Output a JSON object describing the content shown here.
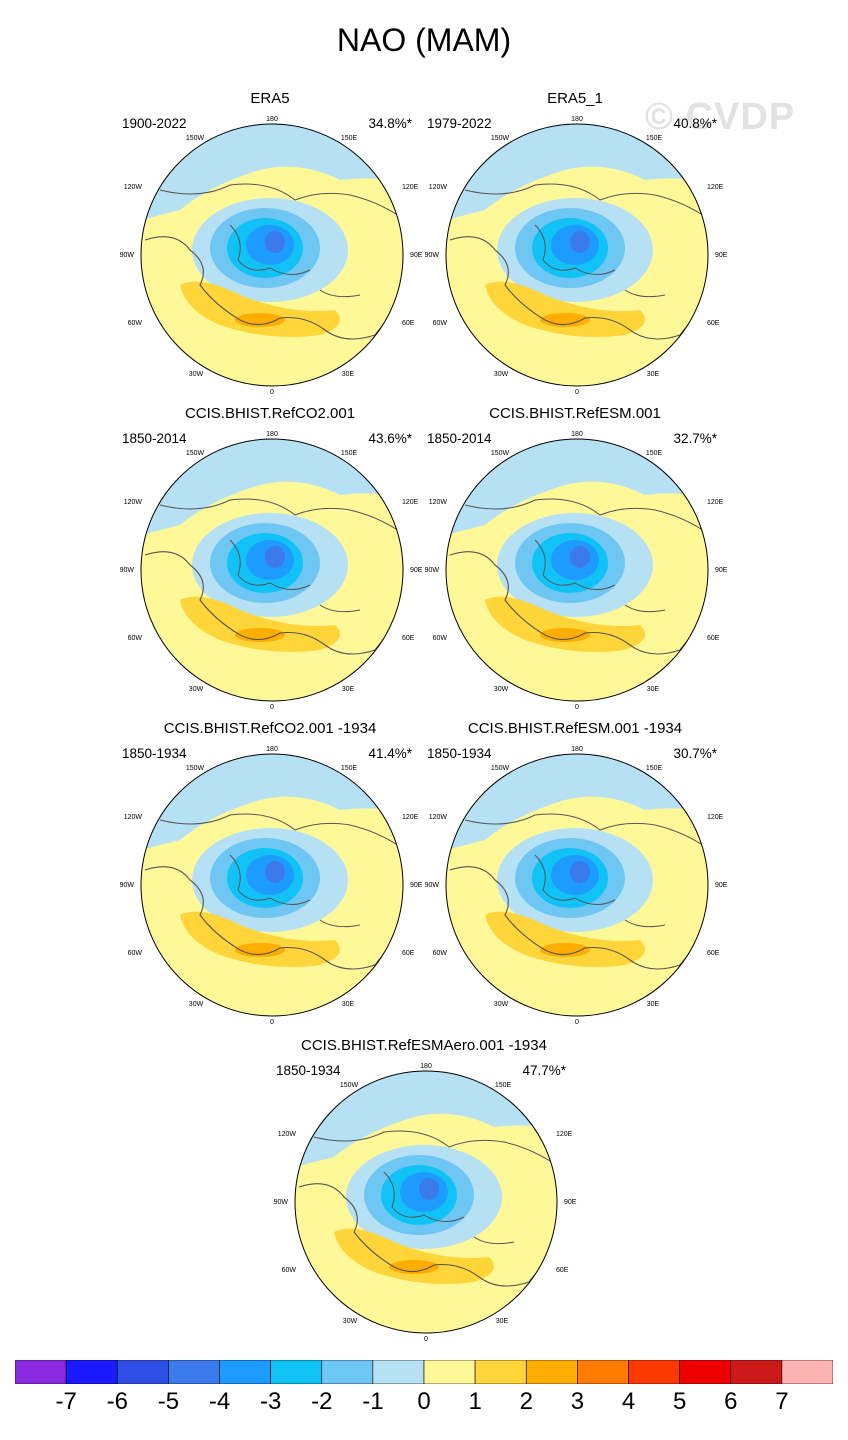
{
  "title": "NAO (MAM)",
  "watermark": "© CVDP",
  "panels": [
    {
      "title": "ERA5",
      "years": "1900-2022",
      "percent": "34.8%*"
    },
    {
      "title": "ERA5_1",
      "years": "1979-2022",
      "percent": "40.8%*"
    },
    {
      "title": "CCIS.BHIST.RefCO2.001",
      "years": "1850-2014",
      "percent": "43.6%*"
    },
    {
      "title": "CCIS.BHIST.RefESM.001",
      "years": "1850-2014",
      "percent": "32.7%*"
    },
    {
      "title": "CCIS.BHIST.RefCO2.001 -1934",
      "years": "1850-1934",
      "percent": "41.4%*"
    },
    {
      "title": "CCIS.BHIST.RefESM.001 -1934",
      "years": "1850-1934",
      "percent": "30.7%*"
    },
    {
      "title": "CCIS.BHIST.RefESMAero.001 -1934",
      "years": "1850-1934",
      "percent": "47.7%*"
    }
  ],
  "map_labels": {
    "top": "180",
    "bottom": "0",
    "upper_left": "150W",
    "upper_right": "150E",
    "mid_left_high": "120W",
    "mid_right_high": "120E",
    "left": "90W",
    "right": "90E",
    "mid_left_low": "60W",
    "mid_right_low": "60E",
    "lower_left": "30W",
    "lower_right": "30E"
  },
  "colorbar": {
    "colors": [
      "#8a2be2",
      "#1a1aff",
      "#2e4ee6",
      "#3b7aea",
      "#1e9bff",
      "#10c2f5",
      "#6ec6f2",
      "#b6e0f4",
      "#fff899",
      "#ffd53a",
      "#ffae00",
      "#ff7c00",
      "#ff3a00",
      "#ee0000",
      "#cc1a1a",
      "#ffb3b3"
    ],
    "labels": [
      "-7",
      "-6",
      "-5",
      "-4",
      "-3",
      "-2",
      "-1",
      "0",
      "1",
      "2",
      "3",
      "4",
      "5",
      "6",
      "7"
    ]
  },
  "map_colors": {
    "neg1": "#b6e0f4",
    "neg2": "#6ec6f2",
    "neg3": "#10c2f5",
    "neg4": "#1e9bff",
    "neg5": "#3b7aea",
    "pos0": "#fff899",
    "pos1": "#ffd53a",
    "pos2": "#ffae00",
    "coast": "#555555"
  }
}
